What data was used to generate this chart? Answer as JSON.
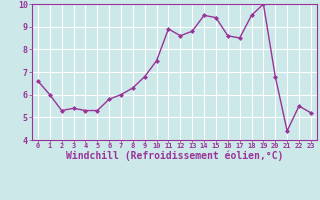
{
  "x": [
    0,
    1,
    2,
    3,
    4,
    5,
    6,
    7,
    8,
    9,
    10,
    11,
    12,
    13,
    14,
    15,
    16,
    17,
    18,
    19,
    20,
    21,
    22,
    23
  ],
  "y": [
    6.6,
    6.0,
    5.3,
    5.4,
    5.3,
    5.3,
    5.8,
    6.0,
    6.3,
    6.8,
    7.5,
    8.9,
    8.6,
    8.8,
    9.5,
    9.4,
    8.6,
    8.5,
    9.5,
    10.0,
    6.8,
    4.4,
    5.5,
    5.2
  ],
  "line_color": "#993399",
  "marker": "D",
  "marker_size": 2.0,
  "linewidth": 1.0,
  "xlabel": "Windchill (Refroidissement éolien,°C)",
  "xlabel_fontsize": 7,
  "xlim": [
    -0.5,
    23.5
  ],
  "ylim": [
    4,
    10
  ],
  "yticks": [
    4,
    5,
    6,
    7,
    8,
    9,
    10
  ],
  "xticks": [
    0,
    1,
    2,
    3,
    4,
    5,
    6,
    7,
    8,
    9,
    10,
    11,
    12,
    13,
    14,
    15,
    16,
    17,
    18,
    19,
    20,
    21,
    22,
    23
  ],
  "bg_color": "#cce8e8",
  "grid_color": "#ffffff",
  "tick_color": "#993399",
  "xtick_fontsize": 5,
  "ytick_fontsize": 6,
  "label_color": "#993399",
  "bottom_bar_color": "#6633aa",
  "bottom_bar_height": 0.18
}
